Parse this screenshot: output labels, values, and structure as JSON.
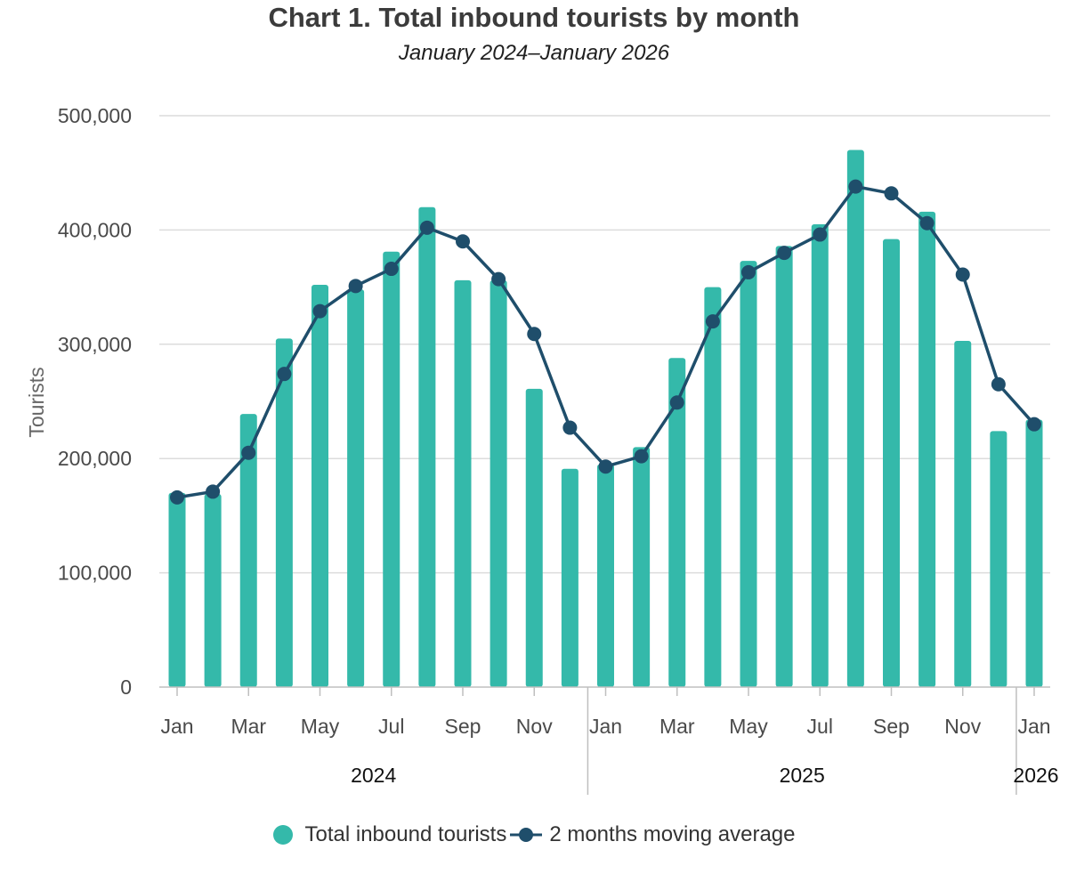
{
  "chart_data": {
    "type": "bar",
    "title": "Chart 1. Total inbound tourists by month",
    "subtitle": "January 2024–January 2026",
    "ylabel": "Tourists",
    "xlabel": "",
    "ylim": [
      0,
      500000
    ],
    "yticks": [
      0,
      100000,
      200000,
      300000,
      400000,
      500000
    ],
    "ytick_labels": [
      "0",
      "100,000",
      "200,000",
      "300,000",
      "400,000",
      "500,000"
    ],
    "grid": true,
    "categories": [
      "Jan",
      "Feb",
      "Mar",
      "Apr",
      "May",
      "Jun",
      "Jul",
      "Aug",
      "Sep",
      "Oct",
      "Nov",
      "Dec",
      "Jan",
      "Feb",
      "Mar",
      "Apr",
      "May",
      "Jun",
      "Jul",
      "Aug",
      "Sep",
      "Oct",
      "Nov",
      "Dec",
      "Jan"
    ],
    "x_tick_labels": [
      "Jan",
      "",
      "Mar",
      "",
      "May",
      "",
      "Jul",
      "",
      "Sep",
      "",
      "Nov",
      "",
      "Jan",
      "",
      "Mar",
      "",
      "May",
      "",
      "Jul",
      "",
      "Sep",
      "",
      "Nov",
      "",
      "Jan"
    ],
    "year_groups": [
      {
        "label": "2024",
        "start": 0,
        "end": 11
      },
      {
        "label": "2025",
        "start": 12,
        "end": 23
      },
      {
        "label": "2026",
        "start": 24,
        "end": 24
      }
    ],
    "series": [
      {
        "name": "Total inbound tourists",
        "type": "bar",
        "color": "#34b9aa",
        "values": [
          170000,
          169000,
          239000,
          305000,
          352000,
          348000,
          381000,
          420000,
          356000,
          356000,
          261000,
          191000,
          195000,
          210000,
          288000,
          350000,
          373000,
          386000,
          405000,
          470000,
          392000,
          416000,
          303000,
          224000,
          234000
        ]
      },
      {
        "name": "2 months moving average",
        "type": "line",
        "color": "#1f4e6b",
        "values": [
          166000,
          171000,
          205000,
          274000,
          329000,
          351000,
          366000,
          402000,
          390000,
          357000,
          309000,
          227000,
          193000,
          202000,
          249000,
          320000,
          363000,
          380000,
          396000,
          438000,
          432000,
          406000,
          361000,
          265000,
          230000
        ]
      }
    ],
    "legend_position": "bottom-center"
  },
  "legend": {
    "bar_label": "Total inbound tourists",
    "line_label": "2 months moving average"
  }
}
